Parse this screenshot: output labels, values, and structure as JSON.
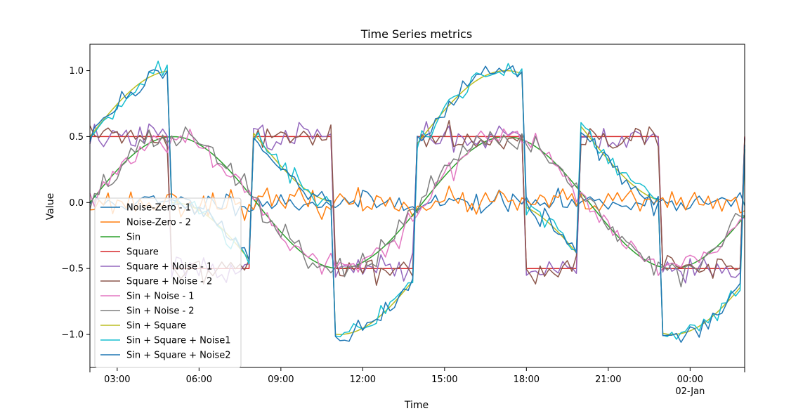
{
  "chart_data": {
    "type": "line",
    "title": "Time Series metrics",
    "xlabel": "Time",
    "ylabel": "Value",
    "x_start": "2023-01-01 02:00",
    "x_end": "2023-01-02 02:00",
    "x_step_minutes": 10,
    "xlim": [
      "2023-01-01 02:00",
      "2023-01-02 02:00"
    ],
    "ylim": [
      -1.25,
      1.2
    ],
    "x_ticks": [
      "03:00",
      "06:00",
      "09:00",
      "12:00",
      "15:00",
      "18:00",
      "21:00",
      "00:00"
    ],
    "x_tick_sublabels": {
      "00:00": "02-Jan"
    },
    "y_ticks": [
      "1.0",
      "0.5",
      "0.0",
      "−0.5",
      "−1.0"
    ],
    "legend_position": "lower-left",
    "grid": false,
    "series": [
      {
        "name": "Noise-Zero - 1",
        "color": "#1f77b4",
        "kind": "noise",
        "amp": 0.04,
        "seed": 11
      },
      {
        "name": "Noise-Zero - 2",
        "color": "#ff7f0e",
        "kind": "noise",
        "amp": 0.05,
        "seed": 23
      },
      {
        "name": "Sin",
        "color": "#2ca02c",
        "kind": "sin",
        "amp": 0.5
      },
      {
        "name": "Square",
        "color": "#d62728",
        "kind": "square",
        "amp": 0.5
      },
      {
        "name": "Square + Noise - 1",
        "color": "#9467bd",
        "kind": "square",
        "amp": 0.5,
        "noise": 0.05,
        "seed": 37
      },
      {
        "name": "Square + Noise - 2",
        "color": "#8c564b",
        "kind": "square",
        "amp": 0.5,
        "noise": 0.05,
        "seed": 41
      },
      {
        "name": "Sin + Noise - 1",
        "color": "#e377c2",
        "kind": "sin",
        "amp": 0.5,
        "noise": 0.05,
        "seed": 53
      },
      {
        "name": "Sin + Noise - 2",
        "color": "#7f7f7f",
        "kind": "sin",
        "amp": 0.5,
        "noise": 0.05,
        "seed": 67
      },
      {
        "name": "Sin + Square",
        "color": "#bcbd22",
        "kind": "sinsquare",
        "amp": 0.5
      },
      {
        "name": "Sin + Square + Noise1",
        "color": "#17becf",
        "kind": "sinsquare",
        "amp": 0.5,
        "noise": 0.04,
        "seed": 71
      },
      {
        "name": "Sin + Square + Noise2",
        "color": "#1f77b4",
        "kind": "sinsquare",
        "amp": 0.5,
        "noise": 0.04,
        "seed": 89
      }
    ]
  }
}
